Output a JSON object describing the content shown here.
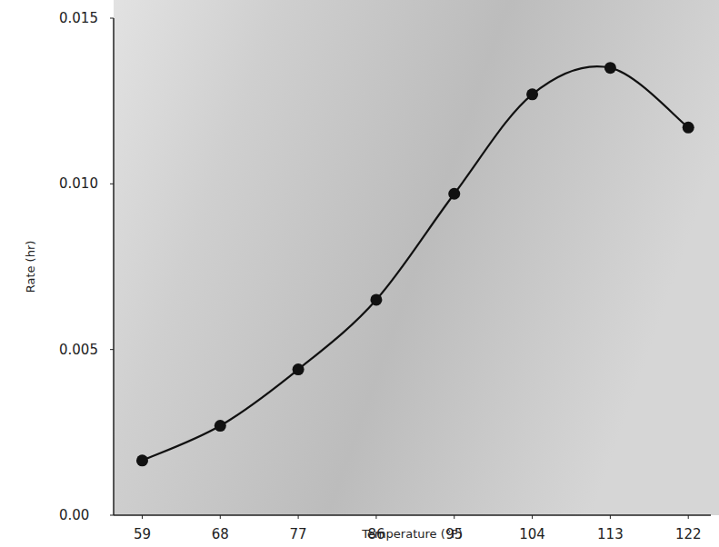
{
  "chart_data": {
    "type": "line",
    "x_label": "Temperature (°F)",
    "y_label": "Rate (hr)",
    "x": [
      59,
      68,
      77,
      86,
      95,
      104,
      113,
      122
    ],
    "series": [
      {
        "color": "#111111",
        "marker": "circle",
        "line_style": "solid",
        "values": [
          0.00165,
          0.0027,
          0.0044,
          0.0065,
          0.0097,
          0.0127,
          0.0135,
          0.0117
        ]
      }
    ],
    "xlim": [
      55.7,
      124.6
    ],
    "ylim": [
      0,
      0.015
    ],
    "xticks": [
      59,
      68,
      77,
      86,
      95,
      104,
      113,
      122
    ],
    "yticks": [
      {
        "value": 0,
        "label": "0.00"
      },
      0.005,
      {
        "value": 0.01,
        "label": "0.010"
      },
      0.015
    ],
    "grid": false
  }
}
